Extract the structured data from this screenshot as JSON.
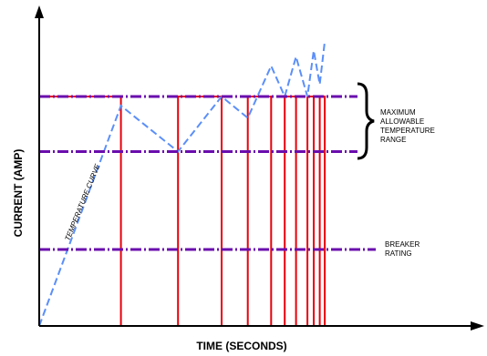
{
  "chart_data": {
    "type": "line",
    "xlabel": "TIME (SECONDS)",
    "ylabel": "CURRENT (AMP)",
    "grid": false,
    "xlim": [
      0,
      100
    ],
    "ylim": [
      0,
      100
    ],
    "reference_lines": [
      {
        "id": "max-temp-upper",
        "y": 75,
        "color": "#6a0dad"
      },
      {
        "id": "max-temp-lower",
        "y": 57,
        "color": "#6a0dad"
      },
      {
        "id": "breaker-rating",
        "y": 25,
        "color": "#6a0dad"
      }
    ],
    "annotations": {
      "max_temp_range": [
        "MAXIMUM",
        "ALLOWABLE",
        "TEMPERATURE",
        "RANGE"
      ],
      "breaker_rating": [
        "BREAKER",
        "RATING"
      ],
      "temperature_curve": "TEMPERATURE CURVE"
    },
    "series": [
      {
        "id": "current",
        "color": "#e8000b",
        "x": [
          0,
          0,
          25.9,
          25.9,
          44,
          44,
          57.8,
          57.8,
          66.1,
          66.1,
          73.5,
          73.5,
          77.8,
          77.8,
          81.4,
          81.4,
          85,
          85,
          87,
          87,
          88.9,
          88.9,
          90.5,
          90.5
        ],
        "y": [
          0,
          75,
          75,
          0,
          0,
          75,
          75,
          0,
          0,
          75,
          75,
          0,
          0,
          75,
          75,
          0,
          0,
          75,
          75,
          0,
          0,
          75,
          75,
          0
        ]
      },
      {
        "id": "temperature",
        "color": "#5b8ff9",
        "x": [
          0,
          25.9,
          44,
          57.8,
          66.1,
          73.5,
          77.8,
          81.4,
          85,
          87,
          88.9,
          90.5
        ],
        "y": [
          0,
          72,
          57,
          75,
          68,
          85,
          75,
          88,
          75,
          90,
          79,
          93
        ]
      }
    ]
  }
}
